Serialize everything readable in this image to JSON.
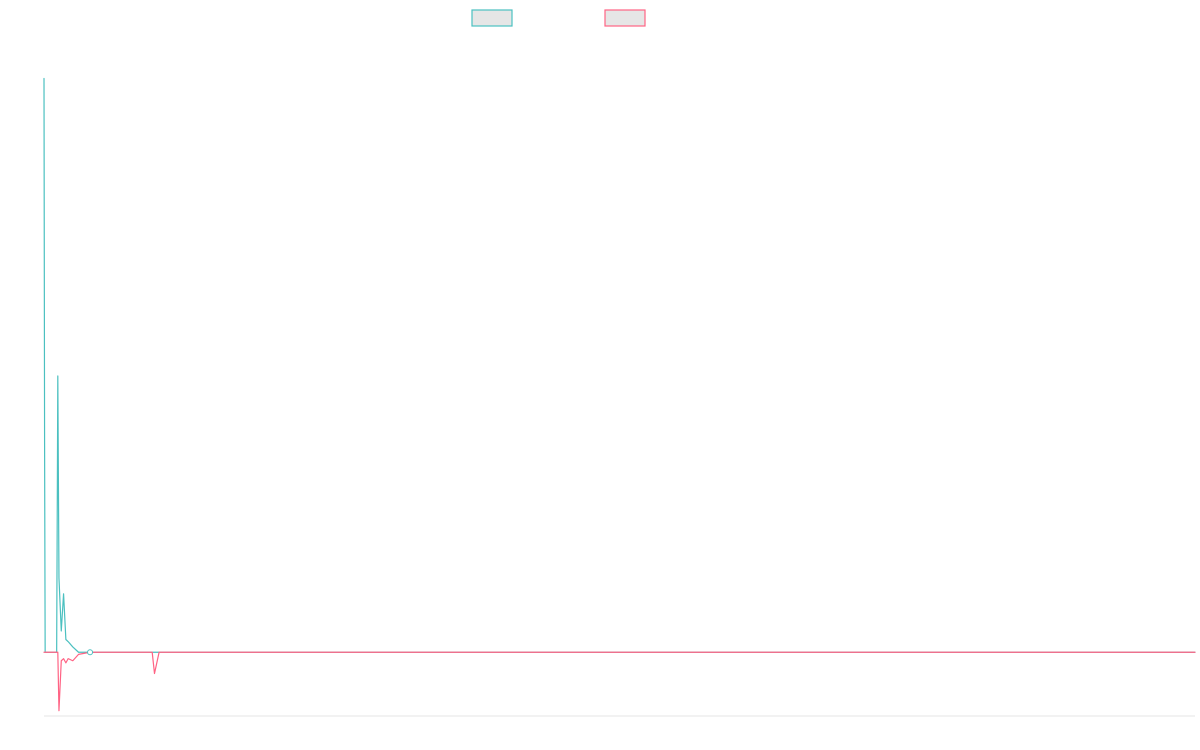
{
  "colors": {
    "series_a": "#4bc0c0",
    "series_b": "#ff6384",
    "legend_fill": "#e6e6e6",
    "axis": "#e5e5e5"
  },
  "chart_data": {
    "type": "line",
    "title": "",
    "xlabel": "",
    "ylabel": "",
    "legend_position": "top-center",
    "grid": false,
    "xlim": [
      0,
      1000
    ],
    "ylim": [
      -60,
      580
    ],
    "series": [
      {
        "x": [
          0,
          0.5,
          1,
          2,
          4,
          6,
          7,
          8,
          10,
          11,
          12,
          13,
          15,
          17,
          19,
          21,
          25,
          30,
          40,
          50,
          80,
          100,
          1000
        ],
        "values": [
          540,
          200,
          0,
          0,
          0,
          0,
          0,
          0,
          0,
          0,
          260,
          70,
          20,
          55,
          12,
          10,
          5,
          0,
          0,
          0,
          0,
          0,
          0
        ]
      },
      {
        "x": [
          0,
          1,
          2,
          6,
          8,
          10,
          11,
          12,
          13,
          15,
          17,
          19,
          21,
          25,
          30,
          40,
          50,
          80,
          90,
          94,
          96,
          100,
          1000
        ],
        "values": [
          0,
          0,
          0,
          0,
          0,
          0,
          0,
          0,
          -55,
          -8,
          -6,
          -10,
          -6,
          -8,
          -2,
          0,
          0,
          0,
          0,
          0,
          -20,
          0,
          0
        ]
      }
    ],
    "markers": [
      {
        "x": 40,
        "y": 0
      }
    ]
  }
}
